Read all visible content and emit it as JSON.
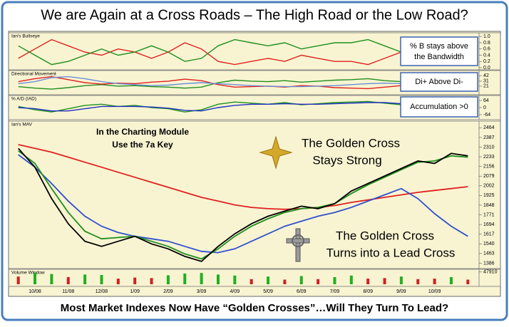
{
  "title": "We are Again at a Cross Roads – The High Road or the Low Road?",
  "footer": "Most Market Indexes Now Have “Golden Crosses”…Will They Turn To Lead?",
  "chart_data": [
    {
      "type": "line",
      "title": "Ian's Bullseye",
      "ylim": [
        0,
        1.05
      ],
      "yticks": [
        {
          "value": 1,
          "label": "1.0"
        },
        0.8,
        0.6,
        0.4,
        0.2,
        {
          "value": 0,
          "label": "0.0"
        }
      ],
      "annotations": [
        "% B stays above",
        "the Bandwidth"
      ],
      "series": [
        {
          "color": "#e02020",
          "values": [
            0.3,
            0.6,
            0.9,
            0.7,
            0.5,
            0.4,
            0.6,
            0.5,
            0.3,
            0.5,
            0.8,
            0.6,
            0.2,
            0.1,
            0.2,
            0.3,
            0.2,
            0.4,
            0.3,
            0.2,
            0.2,
            0.1,
            0.3,
            0.5,
            0.2,
            0.3,
            0.4,
            0.3
          ]
        },
        {
          "color": "#1f8f1f",
          "values": [
            0.7,
            0.4,
            0.1,
            0.2,
            0.4,
            0.6,
            0.4,
            0.5,
            0.7,
            0.5,
            0.2,
            0.3,
            0.7,
            0.9,
            0.8,
            0.7,
            0.8,
            0.6,
            0.7,
            0.8,
            0.8,
            0.9,
            0.7,
            0.5,
            0.8,
            0.7,
            0.6,
            0.7
          ]
        }
      ]
    },
    {
      "type": "line",
      "title": "Directional Movement",
      "ylim": [
        8,
        48
      ],
      "yticks": [
        42,
        31,
        21
      ],
      "annotations": [
        "Di+ Above Di-"
      ],
      "series": [
        {
          "color": "#1f8f1f",
          "values": [
            20,
            17,
            15,
            18,
            22,
            24,
            21,
            22,
            20,
            19,
            17,
            19,
            28,
            33,
            31,
            30,
            32,
            29,
            31,
            33,
            34,
            36,
            32,
            30,
            34,
            33,
            31,
            30
          ]
        },
        {
          "color": "#e02020",
          "values": [
            30,
            36,
            40,
            34,
            28,
            25,
            27,
            26,
            29,
            31,
            35,
            32,
            24,
            19,
            20,
            21,
            19,
            22,
            21,
            18,
            17,
            16,
            19,
            22,
            18,
            19,
            21,
            22
          ]
        },
        {
          "color": "#6a8fd8",
          "values": [
            26,
            30,
            38,
            40,
            36,
            30,
            26,
            24,
            22,
            23,
            26,
            28,
            26,
            24,
            22,
            21,
            20,
            20,
            21,
            22,
            24,
            26,
            27,
            26,
            25,
            26,
            25,
            24
          ]
        }
      ]
    },
    {
      "type": "line",
      "title": "% A/D (IAD)",
      "ylim": [
        -90,
        90
      ],
      "yticks": [
        64,
        0,
        -64
      ],
      "annotations": [
        "Accumulation >0"
      ],
      "series": [
        {
          "color": "#1f8f1f",
          "values": [
            10,
            -20,
            -40,
            -10,
            20,
            30,
            10,
            20,
            0,
            -10,
            -40,
            -20,
            30,
            50,
            40,
            30,
            45,
            25,
            35,
            45,
            50,
            55,
            40,
            25,
            45,
            40,
            30,
            35
          ]
        },
        {
          "color": "#2030c0",
          "values": [
            0,
            -10,
            -30,
            -30,
            -10,
            10,
            10,
            10,
            5,
            -5,
            -25,
            -30,
            0,
            20,
            30,
            30,
            35,
            30,
            30,
            35,
            40,
            45,
            45,
            35,
            35,
            38,
            32,
            30
          ]
        }
      ]
    },
    {
      "type": "line",
      "title": "Ian's MAV",
      "ylim": [
        1360,
        2500
      ],
      "yticks": [
        2464,
        2387,
        2310,
        2233,
        2156,
        2079,
        2002,
        1925,
        1848,
        1771,
        1694,
        1617,
        1540,
        1463,
        1386
      ],
      "annotations": [
        "In the Charting Module",
        "Use the 7a Key",
        "The Golden Cross",
        "Stays Strong",
        "The Golden Cross",
        "Turns into a Lead Cross"
      ],
      "series": [
        {
          "color": "#e02020",
          "values": [
            2330,
            2300,
            2270,
            2230,
            2190,
            2150,
            2110,
            2070,
            2030,
            1990,
            1950,
            1910,
            1880,
            1850,
            1830,
            1820,
            1815,
            1820,
            1830,
            1845,
            1870,
            1890,
            1910,
            1930,
            1950,
            1965,
            1980,
            1995
          ]
        },
        {
          "color": "#3050d0",
          "values": [
            2250,
            2150,
            2020,
            1880,
            1760,
            1680,
            1630,
            1600,
            1580,
            1560,
            1520,
            1480,
            1470,
            1500,
            1560,
            1620,
            1680,
            1720,
            1760,
            1790,
            1830,
            1880,
            1930,
            1980,
            1900,
            1780,
            1680,
            1600
          ]
        },
        {
          "color": "#1f8f1f",
          "values": [
            2280,
            2180,
            1980,
            1790,
            1640,
            1580,
            1590,
            1600,
            1560,
            1520,
            1460,
            1420,
            1500,
            1600,
            1680,
            1740,
            1790,
            1820,
            1830,
            1860,
            1940,
            2010,
            2070,
            2130,
            2190,
            2200,
            2240,
            2230
          ]
        },
        {
          "color": "#000000",
          "values": [
            2300,
            2150,
            1900,
            1700,
            1560,
            1520,
            1560,
            1600,
            1540,
            1500,
            1440,
            1400,
            1520,
            1620,
            1700,
            1760,
            1800,
            1840,
            1820,
            1860,
            1960,
            2020,
            2080,
            2140,
            2200,
            2180,
            2260,
            2240
          ]
        }
      ]
    },
    {
      "type": "bar",
      "title": "Volume Window",
      "ylim": [
        0,
        50000
      ],
      "yticks": [
        47910
      ],
      "categories": [
        null,
        "10/08",
        null,
        "11/08",
        null,
        "12/08",
        null,
        "1/09",
        null,
        "2/09",
        null,
        "3/09",
        null,
        "4/09",
        null,
        "5/09",
        null,
        "6/09",
        null,
        "7/09",
        null,
        "8/09",
        null,
        "9/09",
        null,
        "10/09",
        null,
        null
      ],
      "colors": [
        "#d02020",
        "#20b020",
        "#20b020",
        "#d02020",
        "#20b020",
        "#20b020",
        "#d02020",
        "#d02020",
        "#d02020",
        "#20b020",
        "#20b020",
        "#20b020",
        "#20b020",
        "#20b020",
        "#d02020",
        "#20b020",
        "#d02020",
        "#20b020",
        "#d02020",
        "#20b020",
        "#20b020",
        "#d02020",
        "#d02020",
        "#20b020",
        "#d02020",
        "#d02020",
        "#20b020",
        "#d02020"
      ],
      "values": [
        30000,
        45000,
        40000,
        28000,
        38000,
        36000,
        22000,
        26000,
        24000,
        35000,
        42000,
        44000,
        38000,
        34000,
        20000,
        30000,
        18000,
        32000,
        20000,
        28000,
        34000,
        22000,
        24000,
        30000,
        20000,
        22000,
        28000,
        18000
      ]
    }
  ]
}
